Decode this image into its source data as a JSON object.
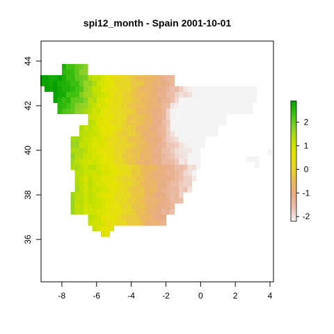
{
  "chart_data": {
    "type": "heatmap",
    "title": "spi12_month - Spain 2001-10-01",
    "xlabel": "",
    "ylabel": "",
    "xlim": [
      -9.2,
      4.2
    ],
    "ylim": [
      34.1,
      44.9
    ],
    "x_ticks": [
      -8,
      -6,
      -4,
      -2,
      0,
      2,
      4
    ],
    "y_ticks": [
      36,
      38,
      40,
      42,
      44
    ],
    "legend": {
      "position": "right",
      "ticks": [
        -2,
        -1,
        0,
        1,
        2
      ],
      "range": [
        -2.2,
        2.9
      ],
      "colors": [
        "#f4f4f4",
        "#ecc2b2",
        "#e8ad86",
        "#ebba5a",
        "#e8d52a",
        "#e4e400",
        "#c4e100",
        "#8cd02a",
        "#3fc211",
        "#05a000"
      ]
    },
    "grid": false,
    "cell_size_deg": 0.25,
    "values_summary": "Gridded SPI-12 over mainland Spain: wet (positive, green) in the northwest and west; near zero (yellow) in the center-south; dry (negative, tan/pink) in the east, driest near -1, 41.3 (white)."
  }
}
